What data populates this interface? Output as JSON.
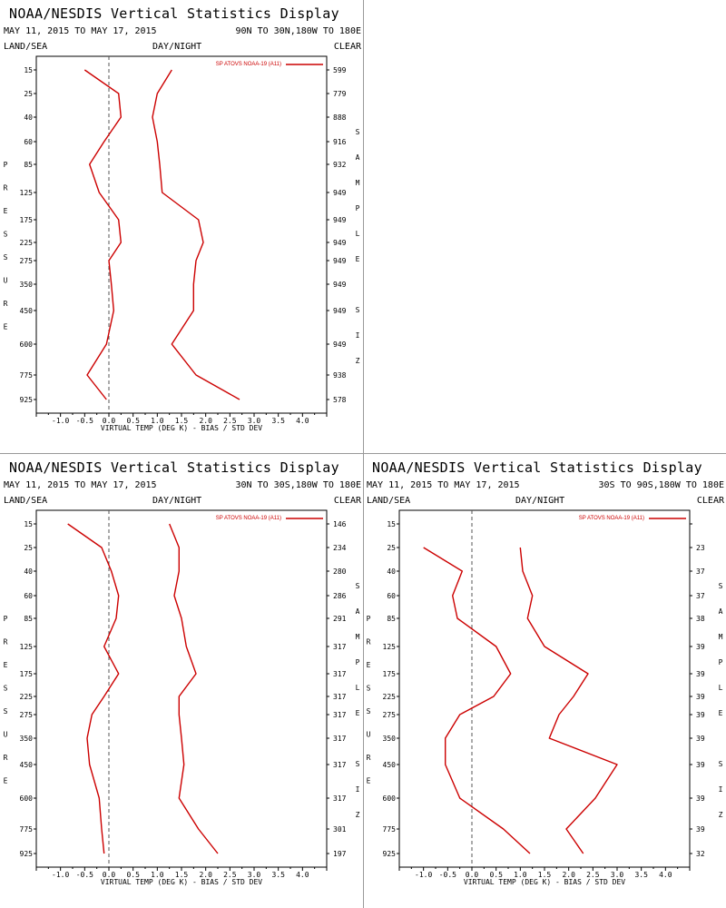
{
  "panels": [
    {
      "title": "NOAA/NESDIS Vertical Statistics Display",
      "daterange": "MAY 11, 2015 TO MAY 17, 2015",
      "region": "90N TO 30N,180W TO 180E",
      "landsea": "LAND/SEA",
      "daynight": "DAY/NIGHT",
      "clear": "CLEAR"
    },
    {
      "title": "NOAA/NESDIS Vertical Statistics Display",
      "daterange": "MAY 11, 2015 TO MAY 17, 2015",
      "region": "30N TO 30S,180W TO 180E",
      "landsea": "LAND/SEA",
      "daynight": "DAY/NIGHT",
      "clear": "CLEAR"
    },
    {
      "title": "NOAA/NESDIS Vertical Statistics Display",
      "daterange": "MAY 11, 2015 TO MAY 17, 2015",
      "region": "30S TO 90S,180W TO 180E",
      "landsea": "LAND/SEA",
      "daynight": "DAY/NIGHT",
      "clear": "CLEAR"
    }
  ],
  "colors": {
    "series": "#cc0000",
    "axis": "#000000",
    "zero_line": "#555555"
  },
  "chart_data": [
    {
      "type": "line",
      "xlabel": "VIRTUAL TEMP (DEG K) - BIAS / STD DEV",
      "ylabel": "PRESSURE",
      "y2label": "SAMPLE SIZE",
      "legend": "SP ATOVS NOAA-19 (A11)",
      "legend_position": "top-right",
      "xlim": [
        -1.5,
        4.5
      ],
      "xticks": [
        "-1.0",
        "-0.5",
        "0.0",
        "0.5",
        "1.0",
        "1.5",
        "2.0",
        "2.5",
        "3.0",
        "3.5",
        "4.0"
      ],
      "pressure_levels": [
        "15",
        "25",
        "40",
        "60",
        "85",
        "125",
        "175",
        "225",
        "275",
        "350",
        "450",
        "600",
        "775",
        "925"
      ],
      "sample_size": [
        "599",
        "779",
        "888",
        "916",
        "932",
        "949",
        "949",
        "949",
        "949",
        "949",
        "949",
        "949",
        "938",
        "578"
      ],
      "series": [
        {
          "values": [
            -0.5,
            0.2,
            0.25,
            -0.1,
            -0.4,
            -0.2,
            0.2,
            0.25,
            0.0,
            0.05,
            0.1,
            -0.05,
            -0.45,
            -0.05
          ]
        },
        {
          "values": [
            1.3,
            1.0,
            0.9,
            1.0,
            1.05,
            1.1,
            1.85,
            1.95,
            1.8,
            1.75,
            1.75,
            1.3,
            1.8,
            2.7
          ]
        }
      ]
    },
    {
      "type": "line",
      "xlabel": "VIRTUAL TEMP (DEG K) - BIAS / STD DEV",
      "ylabel": "PRESSURE",
      "y2label": "SAMPLE SIZE",
      "legend": "SP ATOVS NOAA-19 (A11)",
      "legend_position": "top-right",
      "xlim": [
        -1.5,
        4.5
      ],
      "xticks": [
        "-1.0",
        "-0.5",
        "0.0",
        "0.5",
        "1.0",
        "1.5",
        "2.0",
        "2.5",
        "3.0",
        "3.5",
        "4.0"
      ],
      "pressure_levels": [
        "15",
        "25",
        "40",
        "60",
        "85",
        "125",
        "175",
        "225",
        "275",
        "350",
        "450",
        "600",
        "775",
        "925"
      ],
      "sample_size": [
        "146",
        "234",
        "280",
        "286",
        "291",
        "317",
        "317",
        "317",
        "317",
        "317",
        "317",
        "317",
        "301",
        "197"
      ],
      "series": [
        {
          "values": [
            -0.85,
            -0.15,
            0.05,
            0.2,
            0.15,
            -0.1,
            0.2,
            -0.1,
            -0.35,
            -0.45,
            -0.4,
            -0.2,
            -0.15,
            -0.1
          ]
        },
        {
          "values": [
            1.25,
            1.45,
            1.45,
            1.35,
            1.5,
            1.6,
            1.8,
            1.45,
            1.45,
            1.5,
            1.55,
            1.45,
            1.85,
            2.25
          ]
        }
      ]
    },
    {
      "type": "line",
      "xlabel": "VIRTUAL TEMP (DEG K) - BIAS / STD DEV",
      "ylabel": "PRESSURE",
      "y2label": "SAMPLE SIZE",
      "legend": "SP ATOVS NOAA-19 (A11)",
      "legend_position": "top-right",
      "xlim": [
        -1.5,
        4.5
      ],
      "xticks": [
        "-1.0",
        "-0.5",
        "0.0",
        "0.5",
        "1.0",
        "1.5",
        "2.0",
        "2.5",
        "3.0",
        "3.5",
        "4.0"
      ],
      "pressure_levels": [
        "15",
        "25",
        "40",
        "60",
        "85",
        "125",
        "175",
        "225",
        "275",
        "350",
        "450",
        "600",
        "775",
        "925"
      ],
      "sample_size": [
        "",
        "23",
        "37",
        "37",
        "38",
        "39",
        "39",
        "39",
        "39",
        "39",
        "39",
        "39",
        "39",
        "32"
      ],
      "series": [
        {
          "values": [
            null,
            -1.0,
            -0.2,
            -0.4,
            -0.3,
            0.5,
            0.8,
            0.45,
            -0.25,
            -0.55,
            -0.55,
            -0.25,
            0.65,
            1.2
          ]
        },
        {
          "values": [
            null,
            1.0,
            1.05,
            1.25,
            1.15,
            1.5,
            2.4,
            2.1,
            1.8,
            1.6,
            3.0,
            2.55,
            1.95,
            2.3
          ]
        }
      ]
    }
  ]
}
